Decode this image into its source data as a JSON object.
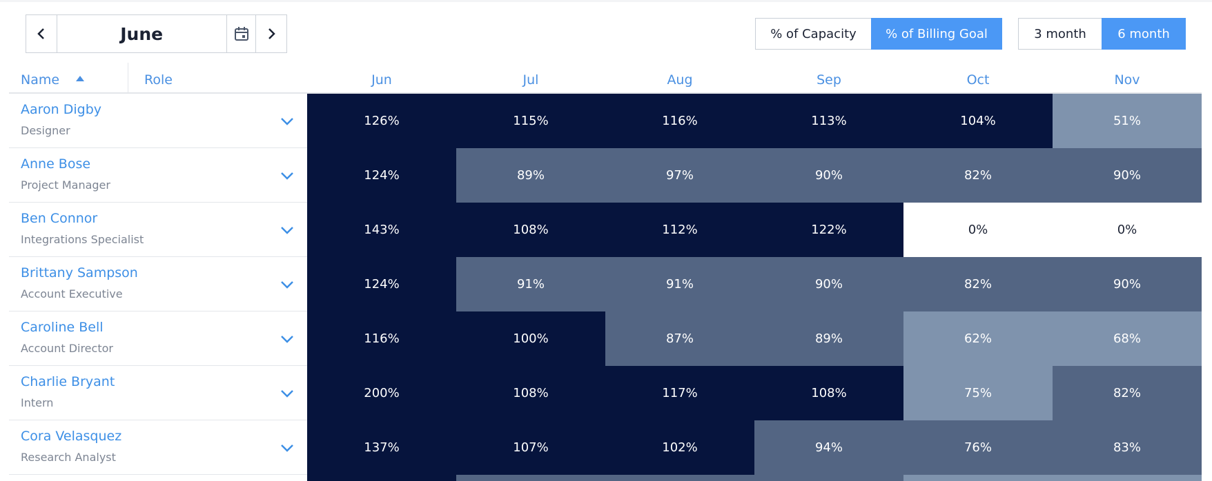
{
  "header": {
    "month": "June",
    "toggles": [
      "% of Capacity",
      "% of Billing Goal"
    ],
    "periods": [
      "3 month",
      "6 month"
    ]
  },
  "table": {
    "columns": [
      "Name",
      "Role",
      "Jun",
      "Jul",
      "Aug",
      "Sep",
      "Oct",
      "Nov"
    ],
    "rows": [
      {
        "name": "Aaron Digby",
        "role": "Designer",
        "values": [
          "126%",
          "115%",
          "116%",
          "113%",
          "104%",
          "51%"
        ]
      },
      {
        "name": "Anne Bose",
        "role": "Project Manager",
        "values": [
          "124%",
          "89%",
          "97%",
          "90%",
          "82%",
          "90%"
        ]
      },
      {
        "name": "Ben Connor",
        "role": "Integrations Specialist",
        "values": [
          "143%",
          "108%",
          "112%",
          "122%",
          "0%",
          "0%"
        ]
      },
      {
        "name": "Brittany Sampson",
        "role": "Account Executive",
        "values": [
          "124%",
          "91%",
          "91%",
          "90%",
          "82%",
          "90%"
        ]
      },
      {
        "name": "Caroline Bell",
        "role": "Account Director",
        "values": [
          "116%",
          "100%",
          "87%",
          "89%",
          "62%",
          "68%"
        ]
      },
      {
        "name": "Charlie Bryant",
        "role": "Intern",
        "values": [
          "200%",
          "108%",
          "117%",
          "108%",
          "75%",
          "82%"
        ]
      },
      {
        "name": "Cora Velasquez",
        "role": "Research Analyst",
        "values": [
          "137%",
          "107%",
          "102%",
          "94%",
          "76%",
          "83%"
        ]
      }
    ]
  }
}
